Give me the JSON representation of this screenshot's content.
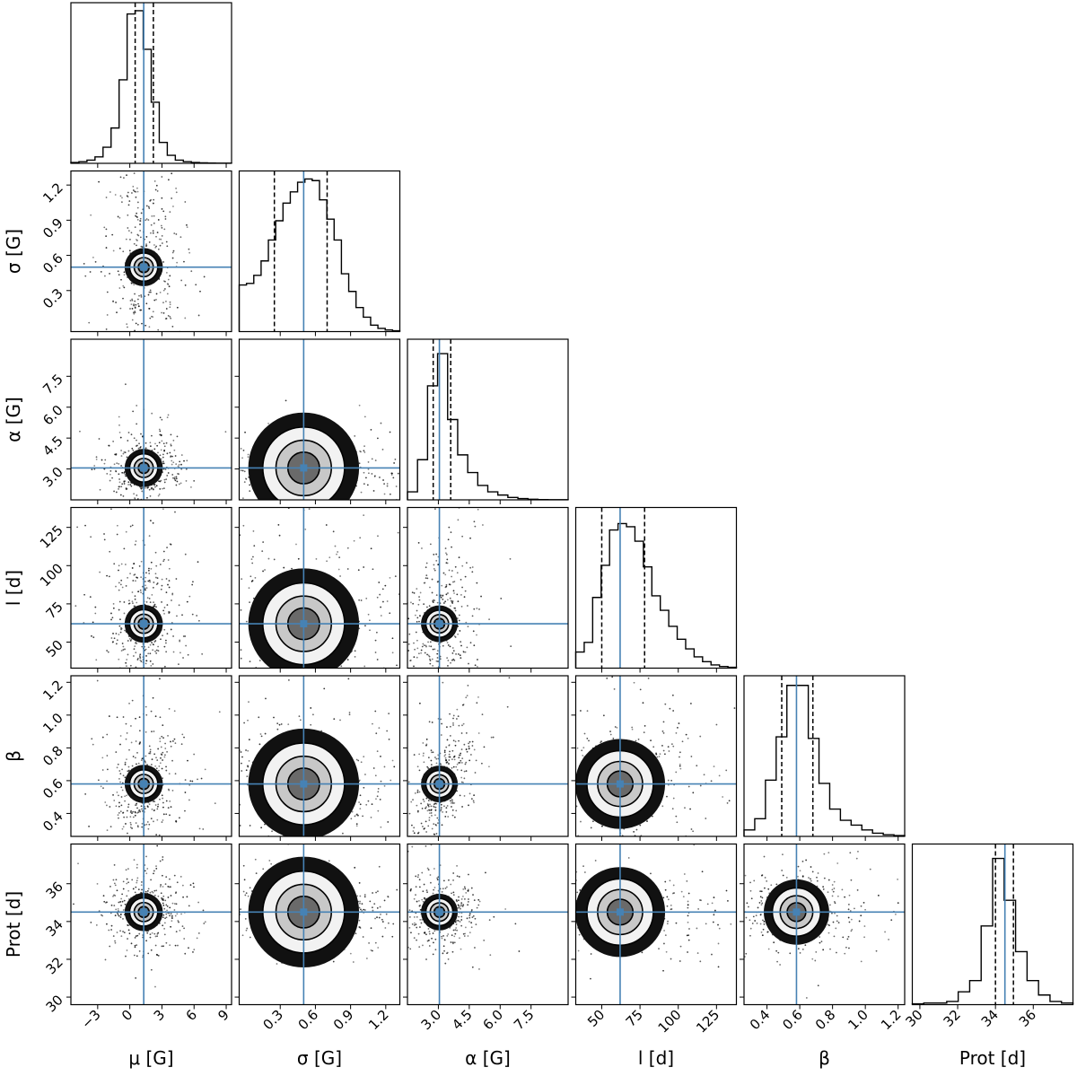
{
  "chart_data": {
    "type": "corner",
    "title": "",
    "truth_color": "#4682b4",
    "hist_color": "#000000",
    "parameters": [
      {
        "symbol": "μ",
        "label": "μ [G]",
        "truth": 1.3,
        "q16": 0.5,
        "q84": 2.2,
        "range": [
          -5.5,
          9.5
        ],
        "ticks": [
          -3,
          0,
          3,
          6,
          9
        ],
        "tick_labels": [
          "−3",
          "0",
          "3",
          "6",
          "9"
        ]
      },
      {
        "symbol": "σ",
        "label": "σ [G]",
        "truth": 0.5,
        "q16": 0.25,
        "q84": 0.7,
        "range": [
          -0.05,
          1.32
        ],
        "ticks": [
          0.3,
          0.6,
          0.9,
          1.2
        ],
        "tick_labels": [
          "0.3",
          "0.6",
          "0.9",
          "1.2"
        ]
      },
      {
        "symbol": "α",
        "label": "α [G]",
        "truth": 3.05,
        "q16": 2.75,
        "q84": 3.6,
        "range": [
          1.5,
          9.3
        ],
        "ticks": [
          3.0,
          4.5,
          6.0,
          7.5
        ],
        "tick_labels": [
          "3.0",
          "4.5",
          "6.0",
          "7.5"
        ]
      },
      {
        "symbol": "l",
        "label": "l [d]",
        "truth": 62,
        "q16": 50,
        "q84": 78,
        "range": [
          33,
          138
        ],
        "ticks": [
          50,
          75,
          100,
          125
        ],
        "tick_labels": [
          "50",
          "75",
          "100",
          "125"
        ]
      },
      {
        "symbol": "β",
        "label": "β",
        "truth": 0.58,
        "q16": 0.49,
        "q84": 0.68,
        "range": [
          0.26,
          1.24
        ],
        "ticks": [
          0.4,
          0.6,
          0.8,
          1.0,
          1.2
        ],
        "tick_labels": [
          "0.4",
          "0.6",
          "0.8",
          "1.0",
          "1.2"
        ]
      },
      {
        "symbol": "Prot",
        "label": "Prot [d]",
        "truth": 34.5,
        "q16": 34.0,
        "q84": 34.95,
        "range": [
          29.6,
          38.1
        ],
        "ticks": [
          30,
          32,
          34,
          36
        ],
        "tick_labels": [
          "30",
          "32",
          "34",
          "36"
        ]
      }
    ],
    "marginal_histograms": [
      [
        0.005,
        0.01,
        0.02,
        0.04,
        0.1,
        0.22,
        0.52,
        0.93,
        0.95,
        0.71,
        0.38,
        0.13,
        0.05,
        0.02,
        0.01,
        0.005,
        0.003,
        0.002,
        0.001,
        0.001
      ],
      [
        0.29,
        0.3,
        0.35,
        0.44,
        0.57,
        0.69,
        0.8,
        0.87,
        0.93,
        0.95,
        0.94,
        0.82,
        0.7,
        0.57,
        0.36,
        0.25,
        0.15,
        0.09,
        0.04,
        0.02,
        0.01,
        0.005
      ],
      [
        0.05,
        0.25,
        0.71,
        0.91,
        0.5,
        0.28,
        0.17,
        0.09,
        0.05,
        0.03,
        0.015,
        0.008,
        0.004,
        0.002,
        0.001,
        0.001
      ],
      [
        0.1,
        0.16,
        0.44,
        0.64,
        0.86,
        0.9,
        0.88,
        0.79,
        0.63,
        0.45,
        0.36,
        0.26,
        0.18,
        0.12,
        0.07,
        0.04,
        0.02,
        0.01,
        0.005
      ],
      [
        0.04,
        0.11,
        0.35,
        0.62,
        0.94,
        0.94,
        0.61,
        0.33,
        0.17,
        0.1,
        0.07,
        0.04,
        0.02,
        0.01,
        0.005
      ],
      [
        0.005,
        0.01,
        0.01,
        0.02,
        0.08,
        0.15,
        0.49,
        0.91,
        0.65,
        0.33,
        0.15,
        0.06,
        0.02,
        0.01
      ]
    ],
    "correlations": {
      "1-0": 0.0,
      "2-0": 0.0,
      "3-0": 0.05,
      "4-0": 0.0,
      "5-0": 0.0,
      "2-1": 0.0,
      "3-1": 0.0,
      "4-1": 0.0,
      "5-1": 0.0,
      "3-2": 0.15,
      "4-2": 0.55,
      "5-2": -0.05,
      "4-3": 0.05,
      "5-3": -0.1,
      "5-4": 0.0
    }
  }
}
